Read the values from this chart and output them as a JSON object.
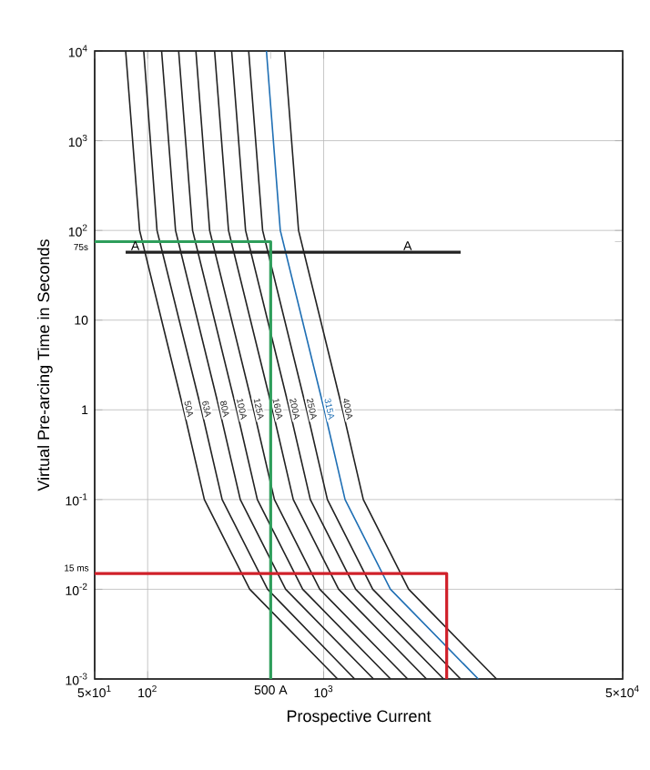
{
  "chart_data": {
    "type": "line",
    "xlabel": "Prospective Current",
    "ylabel": "Virtual Pre-arcing Time in Seconds",
    "log": "xy",
    "grid": true,
    "marker": "none",
    "line_style": "solid",
    "xlim": [
      50,
      50000
    ],
    "ylim": [
      0.001,
      10000
    ],
    "xticks": [
      {
        "value": 50,
        "label": "5×10$^{1}$"
      },
      {
        "value": 100,
        "label": "10$^{2}$"
      },
      {
        "value": 500,
        "label": "500 A"
      },
      {
        "value": 1000,
        "label": "10$^{3}$"
      },
      {
        "value": 50000,
        "label": "5×10$^{4}$"
      }
    ],
    "yticks": [
      {
        "value": 0.001,
        "label": "10$^{-3}$"
      },
      {
        "value": 0.01,
        "label": "10$^{-2}$"
      },
      {
        "value": 0.1,
        "label": "10$^{-1}$"
      },
      {
        "value": 1,
        "label": "1"
      },
      {
        "value": 10,
        "label": "10"
      },
      {
        "value": 75,
        "label": "75s"
      },
      {
        "value": 100,
        "label": "10$^{2}$"
      },
      {
        "value": 1000,
        "label": "10$^{3}$"
      },
      {
        "value": 10000,
        "label": "10$^{4}$"
      }
    ],
    "annotations": [
      {
        "text": "15 ms",
        "x": 50,
        "y": 0.015
      },
      {
        "text": "A",
        "x": 85,
        "y": 57
      },
      {
        "text": "A",
        "x": 3000,
        "y": 57
      }
    ],
    "series": [
      {
        "name": "50A",
        "color": "#222222",
        "x": [
          75,
          90,
          120,
          160,
          210,
          380,
          1200
        ],
        "values": [
          10000,
          100,
          10,
          1,
          0.1,
          0.01,
          0.001
        ]
      },
      {
        "name": "63A",
        "color": "#222222",
        "x": [
          95,
          113,
          151,
          202,
          265,
          480,
          1500
        ],
        "values": [
          10000,
          100,
          10,
          1,
          0.1,
          0.01,
          0.001
        ]
      },
      {
        "name": "80A",
        "color": "#222222",
        "x": [
          120,
          144,
          192,
          256,
          336,
          608,
          1920
        ],
        "values": [
          10000,
          100,
          10,
          1,
          0.1,
          0.01,
          0.001
        ]
      },
      {
        "name": "100A",
        "color": "#222222",
        "x": [
          150,
          180,
          240,
          320,
          420,
          760,
          2400
        ],
        "values": [
          10000,
          100,
          10,
          1,
          0.1,
          0.01,
          0.001
        ]
      },
      {
        "name": "125A",
        "color": "#222222",
        "x": [
          188,
          225,
          300,
          400,
          525,
          950,
          3000
        ],
        "values": [
          10000,
          100,
          10,
          1,
          0.1,
          0.01,
          0.001
        ]
      },
      {
        "name": "160A",
        "color": "#222222",
        "x": [
          240,
          288,
          384,
          512,
          672,
          1216,
          3840
        ],
        "values": [
          10000,
          100,
          10,
          1,
          0.1,
          0.01,
          0.001
        ]
      },
      {
        "name": "200A",
        "color": "#222222",
        "x": [
          300,
          360,
          480,
          640,
          840,
          1520,
          4800
        ],
        "values": [
          10000,
          100,
          10,
          1,
          0.1,
          0.01,
          0.001
        ]
      },
      {
        "name": "250A",
        "color": "#222222",
        "x": [
          375,
          450,
          600,
          800,
          1050,
          1900,
          6000
        ],
        "values": [
          10000,
          100,
          10,
          1,
          0.1,
          0.01,
          0.001
        ]
      },
      {
        "name": "315A",
        "color": "#1f6fb4",
        "x": [
          473,
          567,
          756,
          1008,
          1323,
          2394,
          7560
        ],
        "values": [
          10000,
          100,
          10,
          1,
          0.1,
          0.01,
          0.001
        ]
      },
      {
        "name": "400A",
        "color": "#222222",
        "x": [
          600,
          720,
          960,
          1280,
          1680,
          3040,
          9600
        ],
        "values": [
          10000,
          100,
          10,
          1,
          0.1,
          0.01,
          0.001
        ]
      },
      {
        "color": "#222222",
        "x": [
          75,
          6000
        ],
        "values": [
          57,
          57
        ]
      },
      {
        "color": "#2e9e5b",
        "x": [
          50,
          500,
          500
        ],
        "values": [
          75,
          75,
          0.001
        ]
      },
      {
        "color": "#d0202a",
        "x": [
          50,
          5000,
          5000
        ],
        "values": [
          0.015,
          0.015,
          0.001
        ]
      }
    ]
  }
}
